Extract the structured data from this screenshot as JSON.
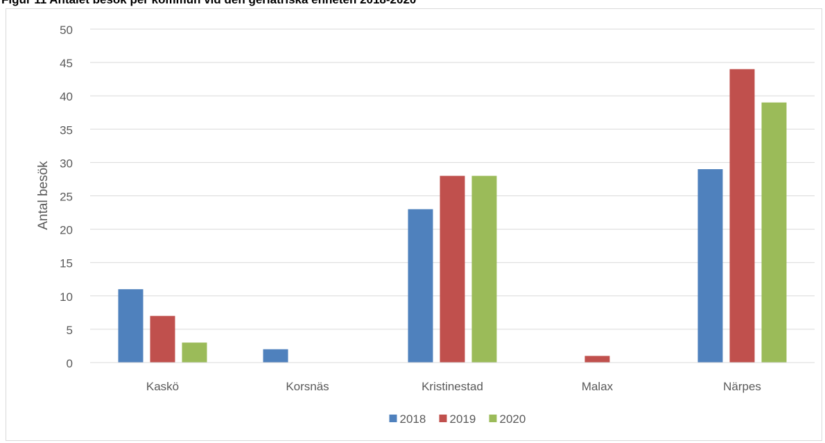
{
  "figure_caption": "Figur 11 Antalet besök per kommun vid den geriatriska enheten 2018-2020",
  "chart_data": {
    "type": "bar",
    "title": "",
    "xlabel": "",
    "ylabel": "Antal besök",
    "categories": [
      "Kaskö",
      "Korsnäs",
      "Kristinestad",
      "Malax",
      "Närpes"
    ],
    "series": [
      {
        "name": "2018",
        "color": "#4f81bd",
        "values": [
          11,
          2,
          23,
          0,
          29
        ]
      },
      {
        "name": "2019",
        "color": "#c0504d",
        "values": [
          7,
          0,
          28,
          1,
          44
        ]
      },
      {
        "name": "2020",
        "color": "#9bbb59",
        "values": [
          3,
          0,
          28,
          0,
          39
        ]
      }
    ],
    "ylim": [
      0,
      50
    ],
    "yticks": [
      0,
      5,
      10,
      15,
      20,
      25,
      30,
      35,
      40,
      45,
      50
    ],
    "grid": true,
    "legend": "bottom"
  }
}
